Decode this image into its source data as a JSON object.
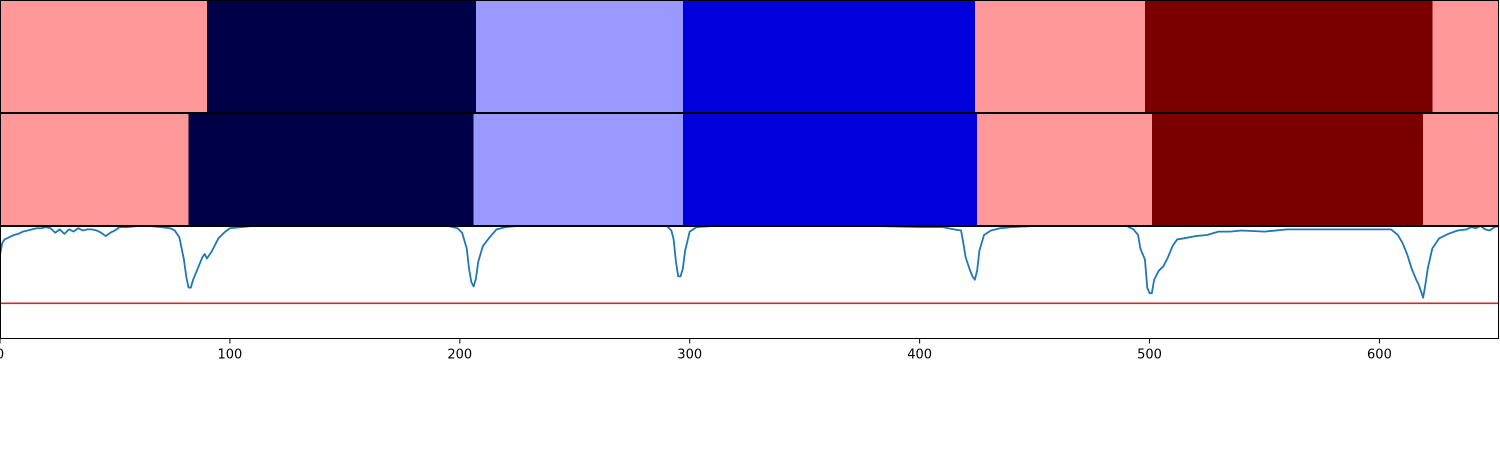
{
  "chart_data": {
    "type": "segmentation-timeline",
    "panels": [
      {
        "kind": "segment-bar",
        "segments": [
          {
            "start": 0,
            "end": 90,
            "color": "#ff9999"
          },
          {
            "start": 90,
            "end": 207,
            "color": "#000048"
          },
          {
            "start": 207,
            "end": 297,
            "color": "#9999ff"
          },
          {
            "start": 297,
            "end": 424,
            "color": "#0000dd"
          },
          {
            "start": 424,
            "end": 498,
            "color": "#ff9999"
          },
          {
            "start": 498,
            "end": 623,
            "color": "#7a0000"
          },
          {
            "start": 623,
            "end": 652,
            "color": "#ff9999"
          }
        ]
      },
      {
        "kind": "segment-bar",
        "segments": [
          {
            "start": 0,
            "end": 82,
            "color": "#ff9999"
          },
          {
            "start": 82,
            "end": 206,
            "color": "#000048"
          },
          {
            "start": 206,
            "end": 297,
            "color": "#9999ff"
          },
          {
            "start": 297,
            "end": 425,
            "color": "#0000dd"
          },
          {
            "start": 425,
            "end": 501,
            "color": "#ff9999"
          },
          {
            "start": 501,
            "end": 619,
            "color": "#7a0000"
          },
          {
            "start": 619,
            "end": 652,
            "color": "#ff9999"
          }
        ]
      },
      {
        "kind": "line",
        "ylim": [
          0,
          1
        ],
        "series": [
          {
            "color": "#1f77b4",
            "points": [
              [
                0,
                0.74
              ],
              [
                1,
                0.85
              ],
              [
                2,
                0.88
              ],
              [
                4,
                0.9
              ],
              [
                6,
                0.92
              ],
              [
                8,
                0.93
              ],
              [
                10,
                0.95
              ],
              [
                12,
                0.96
              ],
              [
                14,
                0.97
              ],
              [
                16,
                0.98
              ],
              [
                18,
                0.98
              ],
              [
                20,
                0.99
              ],
              [
                22,
                0.98
              ],
              [
                24,
                0.94
              ],
              [
                26,
                0.97
              ],
              [
                28,
                0.93
              ],
              [
                30,
                0.97
              ],
              [
                32,
                0.95
              ],
              [
                34,
                0.98
              ],
              [
                36,
                0.96
              ],
              [
                38,
                0.97
              ],
              [
                40,
                0.97
              ],
              [
                42,
                0.96
              ],
              [
                44,
                0.94
              ],
              [
                46,
                0.91
              ],
              [
                48,
                0.94
              ],
              [
                50,
                0.96
              ],
              [
                52,
                0.99
              ],
              [
                55,
                0.99
              ],
              [
                60,
                1.0
              ],
              [
                65,
                1.0
              ],
              [
                70,
                0.99
              ],
              [
                74,
                0.98
              ],
              [
                76,
                0.96
              ],
              [
                78,
                0.9
              ],
              [
                80,
                0.7
              ],
              [
                81,
                0.55
              ],
              [
                82,
                0.45
              ],
              [
                83,
                0.45
              ],
              [
                84,
                0.52
              ],
              [
                86,
                0.62
              ],
              [
                88,
                0.72
              ],
              [
                89,
                0.75
              ],
              [
                90,
                0.71
              ],
              [
                92,
                0.77
              ],
              [
                95,
                0.89
              ],
              [
                98,
                0.95
              ],
              [
                100,
                0.98
              ],
              [
                105,
                0.99
              ],
              [
                110,
                1.0
              ],
              [
                120,
                1.0
              ],
              [
                140,
                1.0
              ],
              [
                160,
                1.0
              ],
              [
                180,
                1.0
              ],
              [
                195,
                1.0
              ],
              [
                199,
                0.98
              ],
              [
                201,
                0.94
              ],
              [
                203,
                0.8
              ],
              [
                204,
                0.62
              ],
              [
                205,
                0.5
              ],
              [
                206,
                0.46
              ],
              [
                207,
                0.53
              ],
              [
                208,
                0.68
              ],
              [
                210,
                0.82
              ],
              [
                213,
                0.9
              ],
              [
                216,
                0.97
              ],
              [
                220,
                0.99
              ],
              [
                225,
                1.0
              ],
              [
                240,
                1.0
              ],
              [
                260,
                1.0
              ],
              [
                280,
                1.0
              ],
              [
                290,
                1.0
              ],
              [
                292,
                0.96
              ],
              [
                293,
                0.88
              ],
              [
                294,
                0.68
              ],
              [
                295,
                0.55
              ],
              [
                296,
                0.55
              ],
              [
                297,
                0.62
              ],
              [
                298,
                0.78
              ],
              [
                300,
                0.95
              ],
              [
                303,
                0.99
              ],
              [
                310,
                1.0
              ],
              [
                330,
                1.0
              ],
              [
                360,
                1.0
              ],
              [
                380,
                1.0
              ],
              [
                400,
                0.99
              ],
              [
                410,
                0.99
              ],
              [
                415,
                0.97
              ],
              [
                418,
                0.96
              ],
              [
                419,
                0.85
              ],
              [
                420,
                0.72
              ],
              [
                422,
                0.6
              ],
              [
                423,
                0.55
              ],
              [
                424,
                0.52
              ],
              [
                425,
                0.6
              ],
              [
                426,
                0.78
              ],
              [
                428,
                0.92
              ],
              [
                431,
                0.96
              ],
              [
                435,
                0.98
              ],
              [
                440,
                0.99
              ],
              [
                450,
                1.0
              ],
              [
                470,
                1.0
              ],
              [
                490,
                1.0
              ],
              [
                493,
                0.97
              ],
              [
                495,
                0.92
              ],
              [
                496,
                0.8
              ],
              [
                498,
                0.7
              ],
              [
                499,
                0.45
              ],
              [
                500,
                0.4
              ],
              [
                501,
                0.4
              ],
              [
                502,
                0.52
              ],
              [
                504,
                0.6
              ],
              [
                506,
                0.64
              ],
              [
                508,
                0.72
              ],
              [
                510,
                0.82
              ],
              [
                512,
                0.88
              ],
              [
                515,
                0.89
              ],
              [
                520,
                0.91
              ],
              [
                525,
                0.92
              ],
              [
                530,
                0.95
              ],
              [
                535,
                0.95
              ],
              [
                540,
                0.96
              ],
              [
                550,
                0.95
              ],
              [
                560,
                0.97
              ],
              [
                570,
                0.97
              ],
              [
                580,
                0.97
              ],
              [
                590,
                0.97
              ],
              [
                600,
                0.97
              ],
              [
                605,
                0.97
              ],
              [
                608,
                0.92
              ],
              [
                610,
                0.85
              ],
              [
                612,
                0.75
              ],
              [
                614,
                0.62
              ],
              [
                616,
                0.52
              ],
              [
                617,
                0.48
              ],
              [
                618,
                0.42
              ],
              [
                619,
                0.36
              ],
              [
                620,
                0.48
              ],
              [
                621,
                0.62
              ],
              [
                623,
                0.8
              ],
              [
                626,
                0.89
              ],
              [
                630,
                0.93
              ],
              [
                634,
                0.96
              ],
              [
                638,
                0.97
              ],
              [
                640,
                0.99
              ],
              [
                642,
                0.98
              ],
              [
                644,
                1.0
              ],
              [
                646,
                0.97
              ],
              [
                648,
                0.96
              ],
              [
                650,
                0.99
              ],
              [
                652,
                1.0
              ]
            ]
          }
        ],
        "hlines": [
          {
            "y": 0.31,
            "color": "#d62728"
          }
        ]
      }
    ],
    "xlim": [
      0,
      652
    ],
    "x_ticks": [
      0,
      100,
      200,
      300,
      400,
      500,
      600
    ]
  }
}
